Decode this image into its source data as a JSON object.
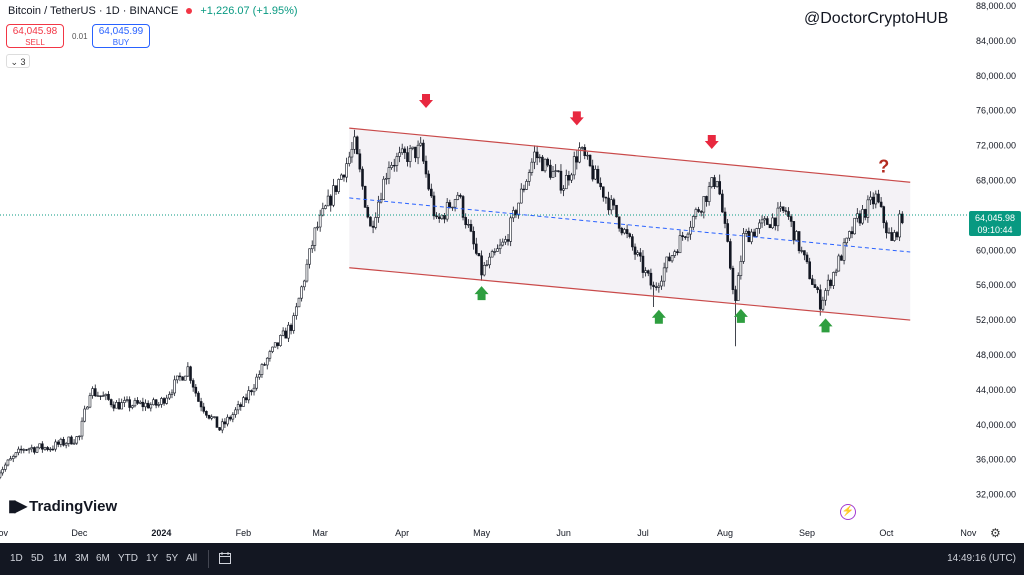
{
  "header": {
    "symbol": "Bitcoin / TetherUS · 1D · BINANCE",
    "change": "+1,226.07 (+1.95%)",
    "sell_price": "64,045.98",
    "sell_label": "SELL",
    "buy_price": "64,045.99",
    "buy_label": "BUY",
    "spread": "0.01",
    "indicators_count": "3"
  },
  "watermark": "@DoctorCryptoHUB",
  "logo": "TradingView",
  "price_label": {
    "price": "64,045.98",
    "countdown": "09:10:44"
  },
  "bottom_bar": {
    "timeframes": [
      "1D",
      "5D",
      "1M",
      "3M",
      "6M",
      "YTD",
      "1Y",
      "5Y",
      "All"
    ],
    "clock": "14:49:16 (UTC)"
  },
  "colors": {
    "up": "#089981",
    "down": "#f23645",
    "channel": "#c94a4a",
    "midline": "#2962ff",
    "arrow_up": "#2e9e3f",
    "arrow_down": "#e8283f",
    "question": "#b22a1f"
  },
  "chart_data": {
    "type": "candlestick",
    "title": "",
    "xlabel": "",
    "ylabel": "",
    "grid": false,
    "ylim": [
      30000,
      88000
    ],
    "xlim": [
      "2023-11-01",
      "2024-11-22"
    ],
    "y_ticks": [
      "32,000.00",
      "36,000.00",
      "40,000.00",
      "44,000.00",
      "48,000.00",
      "52,000.00",
      "56,000.00",
      "60,000.00",
      "64,000.00",
      "68,000.00",
      "72,000.00",
      "76,000.00",
      "80,000.00",
      "84,000.00",
      "88,000.00"
    ],
    "x_ticks": [
      {
        "label": "Nov",
        "date": "2023-11-01"
      },
      {
        "label": "Dec",
        "date": "2023-12-01"
      },
      {
        "label": "2024",
        "date": "2024-01-01"
      },
      {
        "label": "Feb",
        "date": "2024-02-01"
      },
      {
        "label": "Mar",
        "date": "2024-03-01"
      },
      {
        "label": "Apr",
        "date": "2024-04-01"
      },
      {
        "label": "May",
        "date": "2024-05-01"
      },
      {
        "label": "Jun",
        "date": "2024-06-01"
      },
      {
        "label": "Jul",
        "date": "2024-07-01"
      },
      {
        "label": "Aug",
        "date": "2024-08-01"
      },
      {
        "label": "Sep",
        "date": "2024-09-01"
      },
      {
        "label": "Oct",
        "date": "2024-10-01"
      },
      {
        "label": "Nov",
        "date": "2024-11-01"
      }
    ],
    "price_path": [
      [
        "2023-10-31",
        34500
      ],
      [
        "2023-11-10",
        37300
      ],
      [
        "2023-11-20",
        37400
      ],
      [
        "2023-12-01",
        38600
      ],
      [
        "2023-12-05",
        44000
      ],
      [
        "2023-12-15",
        42300
      ],
      [
        "2023-12-31",
        42300
      ],
      [
        "2024-01-11",
        46500
      ],
      [
        "2024-01-15",
        42800
      ],
      [
        "2024-01-23",
        39500
      ],
      [
        "2024-02-01",
        42500
      ],
      [
        "2024-02-10",
        47500
      ],
      [
        "2024-02-20",
        51800
      ],
      [
        "2024-02-28",
        62000
      ],
      [
        "2024-03-05",
        66000
      ],
      [
        "2024-03-14",
        72000
      ],
      [
        "2024-03-20",
        62500
      ],
      [
        "2024-03-27",
        70000
      ],
      [
        "2024-04-08",
        71500
      ],
      [
        "2024-04-14",
        63000
      ],
      [
        "2024-04-22",
        66500
      ],
      [
        "2024-05-01",
        57500
      ],
      [
        "2024-05-10",
        61000
      ],
      [
        "2024-05-21",
        71000
      ],
      [
        "2024-06-01",
        67500
      ],
      [
        "2024-06-07",
        71500
      ],
      [
        "2024-06-20",
        64500
      ],
      [
        "2024-07-05",
        55500
      ],
      [
        "2024-07-10",
        58500
      ],
      [
        "2024-07-29",
        68500
      ],
      [
        "2024-08-05",
        54000
      ],
      [
        "2024-08-08",
        61500
      ],
      [
        "2024-08-24",
        64500
      ],
      [
        "2024-09-06",
        54000
      ],
      [
        "2024-09-20",
        63500
      ],
      [
        "2024-09-27",
        66000
      ],
      [
        "2024-10-03",
        60800
      ],
      [
        "2024-10-07",
        64045
      ]
    ],
    "wick_extremes": [
      {
        "date": "2024-03-14",
        "value": 73800
      },
      {
        "date": "2024-05-01",
        "value": 56500
      },
      {
        "date": "2024-07-05",
        "value": 53500
      },
      {
        "date": "2024-08-05",
        "value": 49000
      },
      {
        "date": "2024-09-06",
        "value": 52500
      }
    ],
    "channel": {
      "upper": [
        [
          "2024-03-12",
          74000
        ],
        [
          "2024-10-10",
          67800
        ]
      ],
      "lower": [
        [
          "2024-03-12",
          58000
        ],
        [
          "2024-10-10",
          52000
        ]
      ],
      "mid": [
        [
          "2024-03-12",
          66000
        ],
        [
          "2024-10-10",
          59800
        ]
      ]
    },
    "last_price": 64045.98,
    "annotations": [
      {
        "type": "arrow-down",
        "date": "2024-04-10",
        "value": 77000
      },
      {
        "type": "arrow-down",
        "date": "2024-06-06",
        "value": 75000
      },
      {
        "type": "arrow-down",
        "date": "2024-07-27",
        "value": 72300
      },
      {
        "type": "question",
        "date": "2024-09-30",
        "value": 69600
      },
      {
        "type": "arrow-up",
        "date": "2024-05-01",
        "value": 55200
      },
      {
        "type": "arrow-up",
        "date": "2024-07-07",
        "value": 52500
      },
      {
        "type": "arrow-up",
        "date": "2024-08-07",
        "value": 52600
      },
      {
        "type": "arrow-up",
        "date": "2024-09-08",
        "value": 51500
      }
    ]
  }
}
